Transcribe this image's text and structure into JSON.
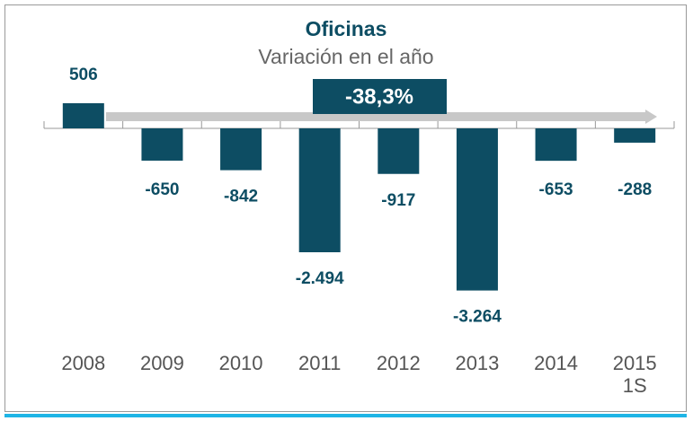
{
  "chart_data": {
    "type": "bar",
    "title": "Oficinas",
    "subtitle": "Variación en el año",
    "categories": [
      "2008",
      "2009",
      "2010",
      "2011",
      "2012",
      "2013",
      "2014",
      "2015 1S"
    ],
    "values": [
      506,
      -650,
      -842,
      -2494,
      -917,
      -3264,
      -653,
      -288
    ],
    "value_labels": [
      "506",
      "-650",
      "-842",
      "-2.494",
      "-917",
      "-3.264",
      "-653",
      "-288"
    ],
    "color": "#0d4d63",
    "annotation": "-38,3%"
  }
}
